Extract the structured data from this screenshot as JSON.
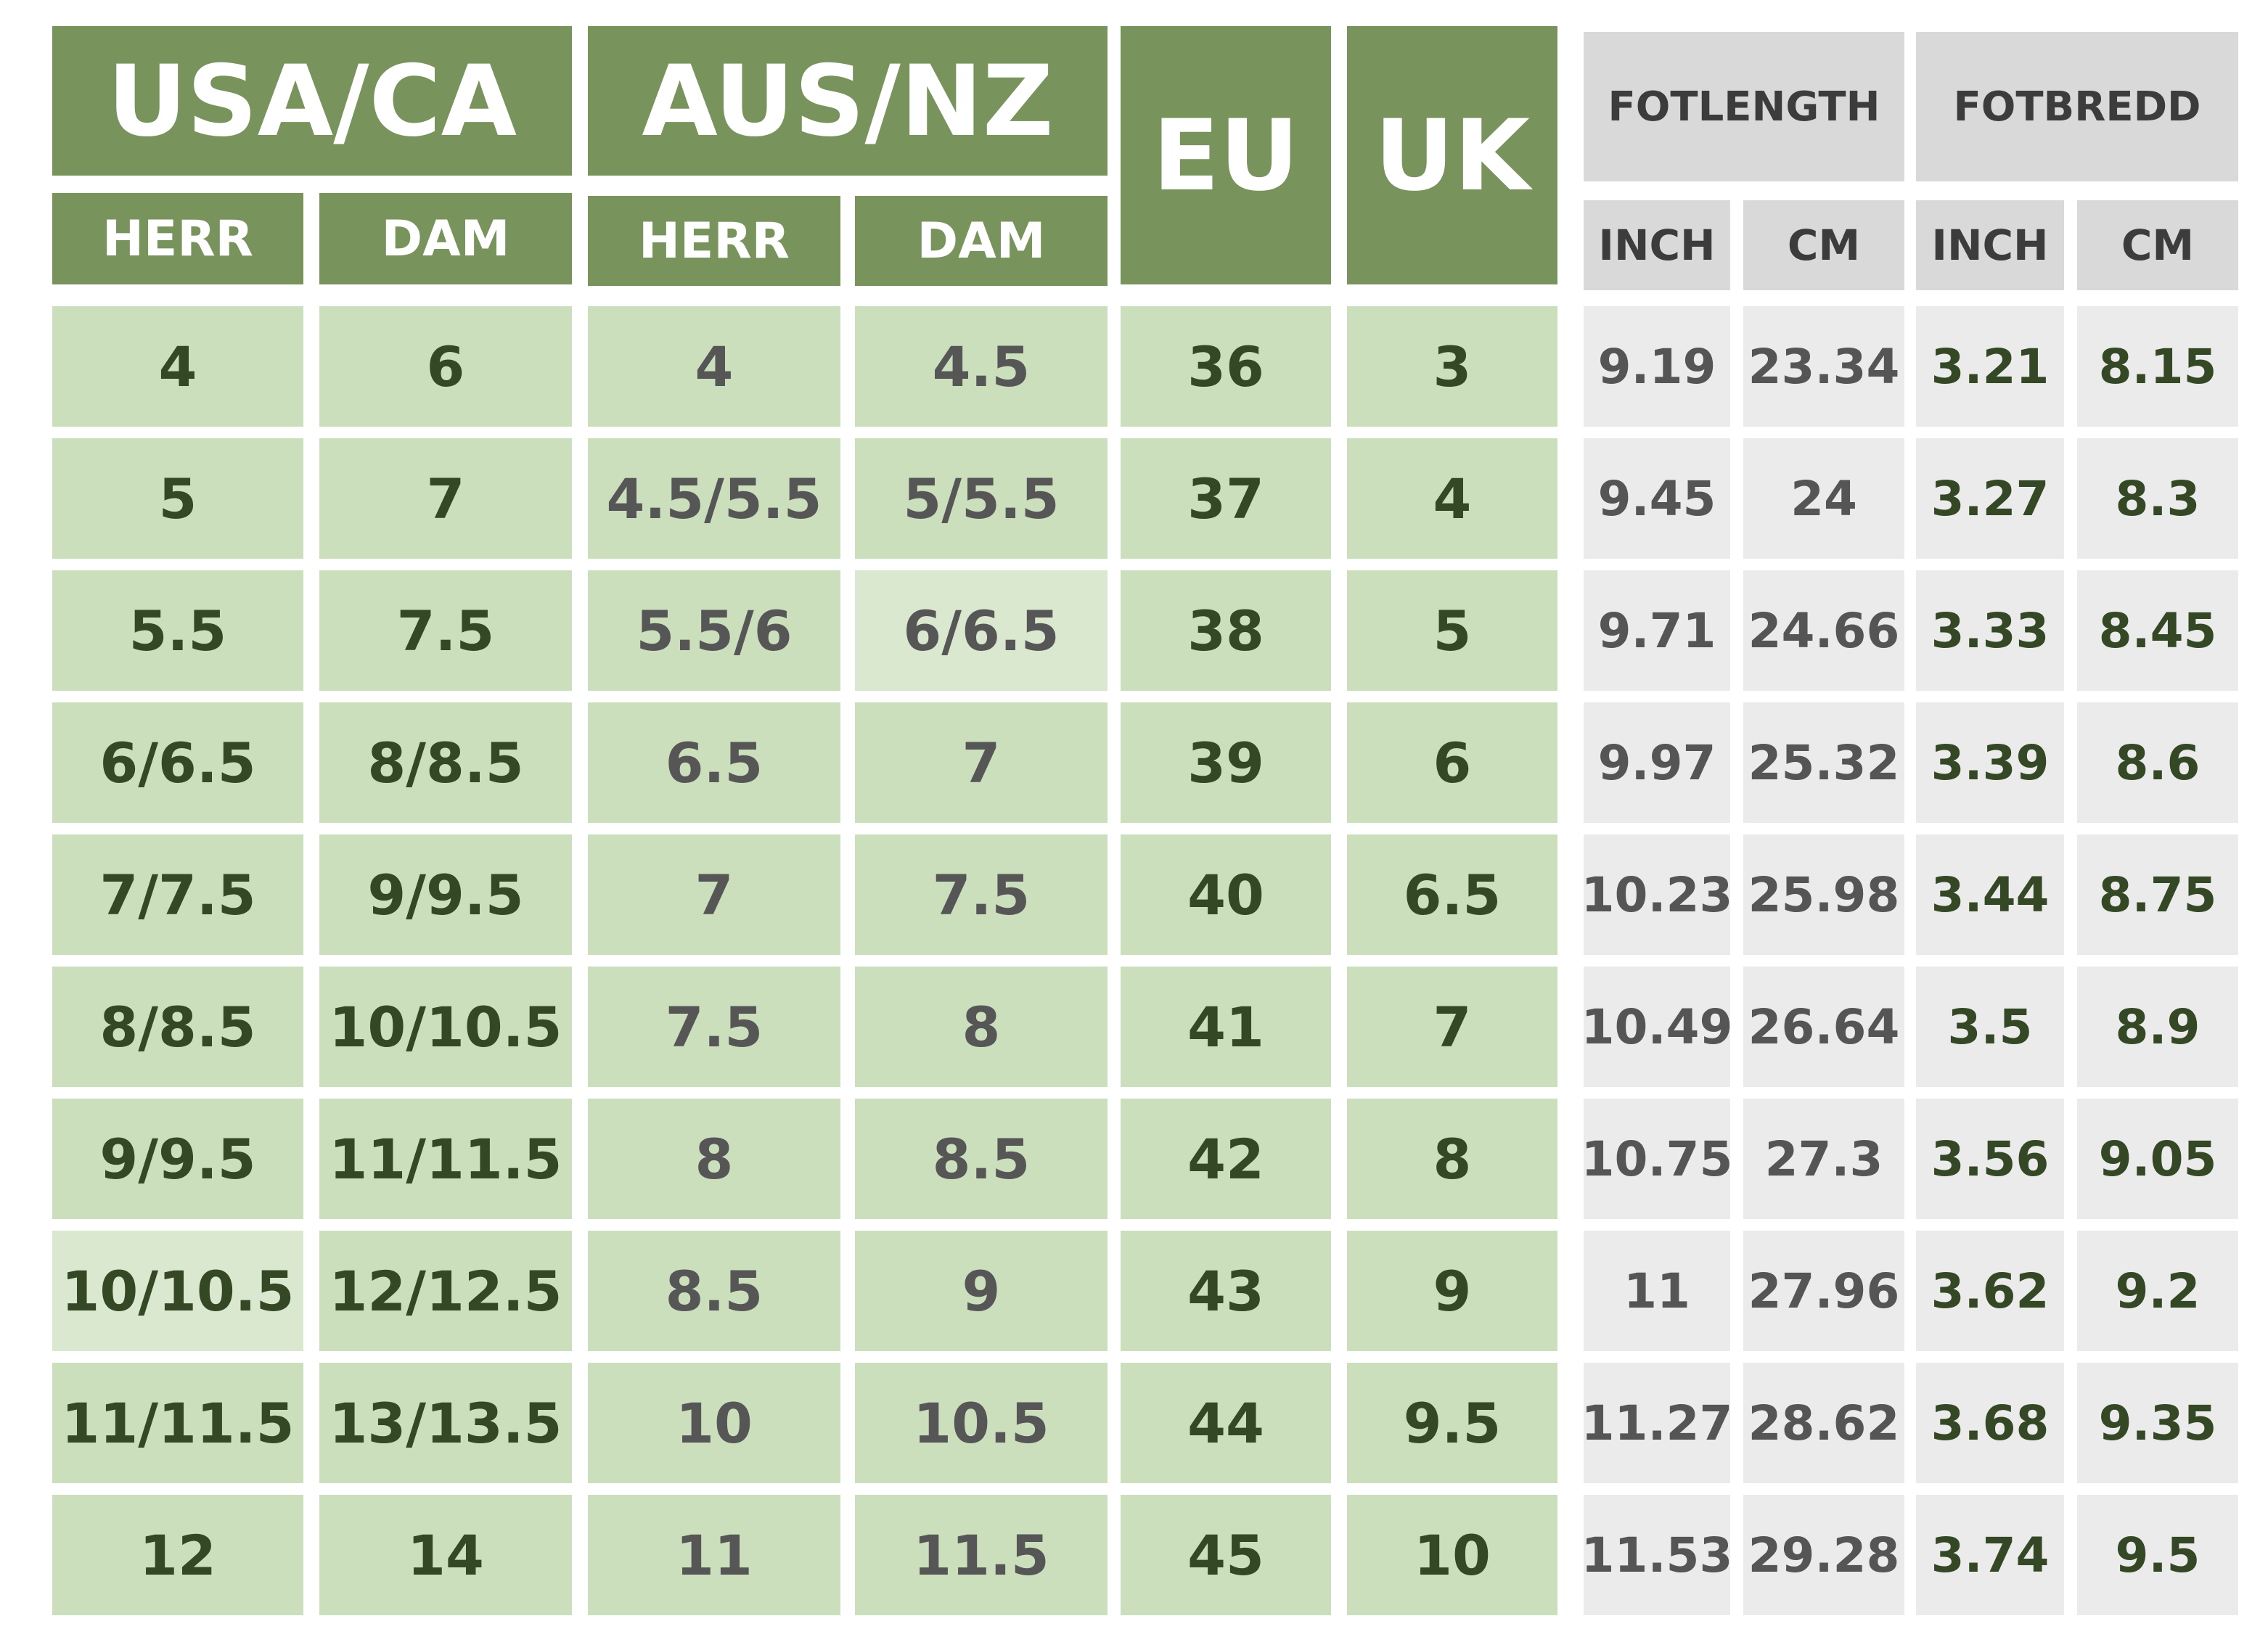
{
  "header": {
    "usa_ca": "USA/CA",
    "aus_nz": "AUS/NZ",
    "eu": "EU",
    "uk": "UK",
    "herr": "HERR",
    "dam": "DAM",
    "fotlength": "FOTLENGTH",
    "fotbredd": "FOTBREDD",
    "inch": "INCH",
    "cm": "CM"
  },
  "rows": [
    {
      "usa_herr": "4",
      "usa_dam": "6",
      "aus_herr": "4",
      "aus_dam": "4.5",
      "eu": "36",
      "uk": "3",
      "len_inch": "9.19",
      "len_cm": "23.34",
      "wid_inch": "3.21",
      "wid_cm": "8.15"
    },
    {
      "usa_herr": "5",
      "usa_dam": "7",
      "aus_herr": "4.5/5.5",
      "aus_dam": "5/5.5",
      "eu": "37",
      "uk": "4",
      "len_inch": "9.45",
      "len_cm": "24",
      "wid_inch": "3.27",
      "wid_cm": "8.3"
    },
    {
      "usa_herr": "5.5",
      "usa_dam": "7.5",
      "aus_herr": "5.5/6",
      "aus_dam": "6/6.5",
      "eu": "38",
      "uk": "5",
      "len_inch": "9.71",
      "len_cm": "24.66",
      "wid_inch": "3.33",
      "wid_cm": "8.45"
    },
    {
      "usa_herr": "6/6.5",
      "usa_dam": "8/8.5",
      "aus_herr": "6.5",
      "aus_dam": "7",
      "eu": "39",
      "uk": "6",
      "len_inch": "9.97",
      "len_cm": "25.32",
      "wid_inch": "3.39",
      "wid_cm": "8.6"
    },
    {
      "usa_herr": "7/7.5",
      "usa_dam": "9/9.5",
      "aus_herr": "7",
      "aus_dam": "7.5",
      "eu": "40",
      "uk": "6.5",
      "len_inch": "10.23",
      "len_cm": "25.98",
      "wid_inch": "3.44",
      "wid_cm": "8.75"
    },
    {
      "usa_herr": "8/8.5",
      "usa_dam": "10/10.5",
      "aus_herr": "7.5",
      "aus_dam": "8",
      "eu": "41",
      "uk": "7",
      "len_inch": "10.49",
      "len_cm": "26.64",
      "wid_inch": "3.5",
      "wid_cm": "8.9"
    },
    {
      "usa_herr": "9/9.5",
      "usa_dam": "11/11.5",
      "aus_herr": "8",
      "aus_dam": "8.5",
      "eu": "42",
      "uk": "8",
      "len_inch": "10.75",
      "len_cm": "27.3",
      "wid_inch": "3.56",
      "wid_cm": "9.05"
    },
    {
      "usa_herr": "10/10.5",
      "usa_dam": "12/12.5",
      "aus_herr": "8.5",
      "aus_dam": "9",
      "eu": "43",
      "uk": "9",
      "len_inch": "11",
      "len_cm": "27.96",
      "wid_inch": "3.62",
      "wid_cm": "9.2"
    },
    {
      "usa_herr": "11/11.5",
      "usa_dam": "13/13.5",
      "aus_herr": "10",
      "aus_dam": "10.5",
      "eu": "44",
      "uk": "9.5",
      "len_inch": "11.27",
      "len_cm": "28.62",
      "wid_inch": "3.68",
      "wid_cm": "9.35"
    },
    {
      "usa_herr": "12",
      "usa_dam": "14",
      "aus_herr": "11",
      "aus_dam": "11.5",
      "eu": "45",
      "uk": "10",
      "len_inch": "11.53",
      "len_cm": "29.28",
      "wid_inch": "3.74",
      "wid_cm": "9.5"
    }
  ],
  "colors": {
    "header_green": "#78935c",
    "cell_green": "#cbdfbc",
    "dark_green_text": "#354826",
    "gray_header": "#d9d9d9",
    "gray_cell": "#ebebeb"
  }
}
